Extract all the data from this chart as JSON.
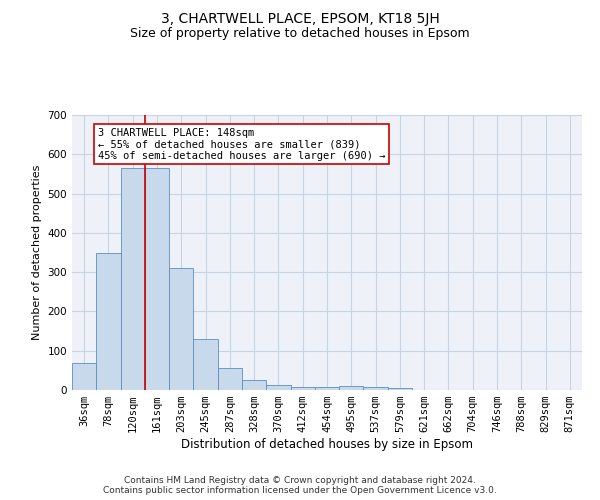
{
  "title": "3, CHARTWELL PLACE, EPSOM, KT18 5JH",
  "subtitle": "Size of property relative to detached houses in Epsom",
  "xlabel": "Distribution of detached houses by size in Epsom",
  "ylabel": "Number of detached properties",
  "categories": [
    "36sqm",
    "78sqm",
    "120sqm",
    "161sqm",
    "203sqm",
    "245sqm",
    "287sqm",
    "328sqm",
    "370sqm",
    "412sqm",
    "454sqm",
    "495sqm",
    "537sqm",
    "579sqm",
    "621sqm",
    "662sqm",
    "704sqm",
    "746sqm",
    "788sqm",
    "829sqm",
    "871sqm"
  ],
  "values": [
    70,
    350,
    565,
    565,
    310,
    130,
    57,
    25,
    13,
    7,
    7,
    10,
    7,
    5,
    0,
    0,
    0,
    0,
    0,
    0,
    0
  ],
  "bar_color": "#c9d9ec",
  "bar_edge_color": "#5b8ec4",
  "vline_color": "#cc0000",
  "vline_x_index": 2.5,
  "annotation_text": "3 CHARTWELL PLACE: 148sqm\n← 55% of detached houses are smaller (839)\n45% of semi-detached houses are larger (690) →",
  "annotation_box_color": "white",
  "annotation_box_edge_color": "#cc0000",
  "ylim": [
    0,
    700
  ],
  "yticks": [
    0,
    100,
    200,
    300,
    400,
    500,
    600,
    700
  ],
  "grid_color": "#c8d4e3",
  "background_color": "#eef2f8",
  "footer": "Contains HM Land Registry data © Crown copyright and database right 2024.\nContains public sector information licensed under the Open Government Licence v3.0.",
  "title_fontsize": 10,
  "subtitle_fontsize": 9,
  "xlabel_fontsize": 8.5,
  "ylabel_fontsize": 8,
  "tick_fontsize": 7.5,
  "annotation_fontsize": 7.5,
  "footer_fontsize": 6.5
}
